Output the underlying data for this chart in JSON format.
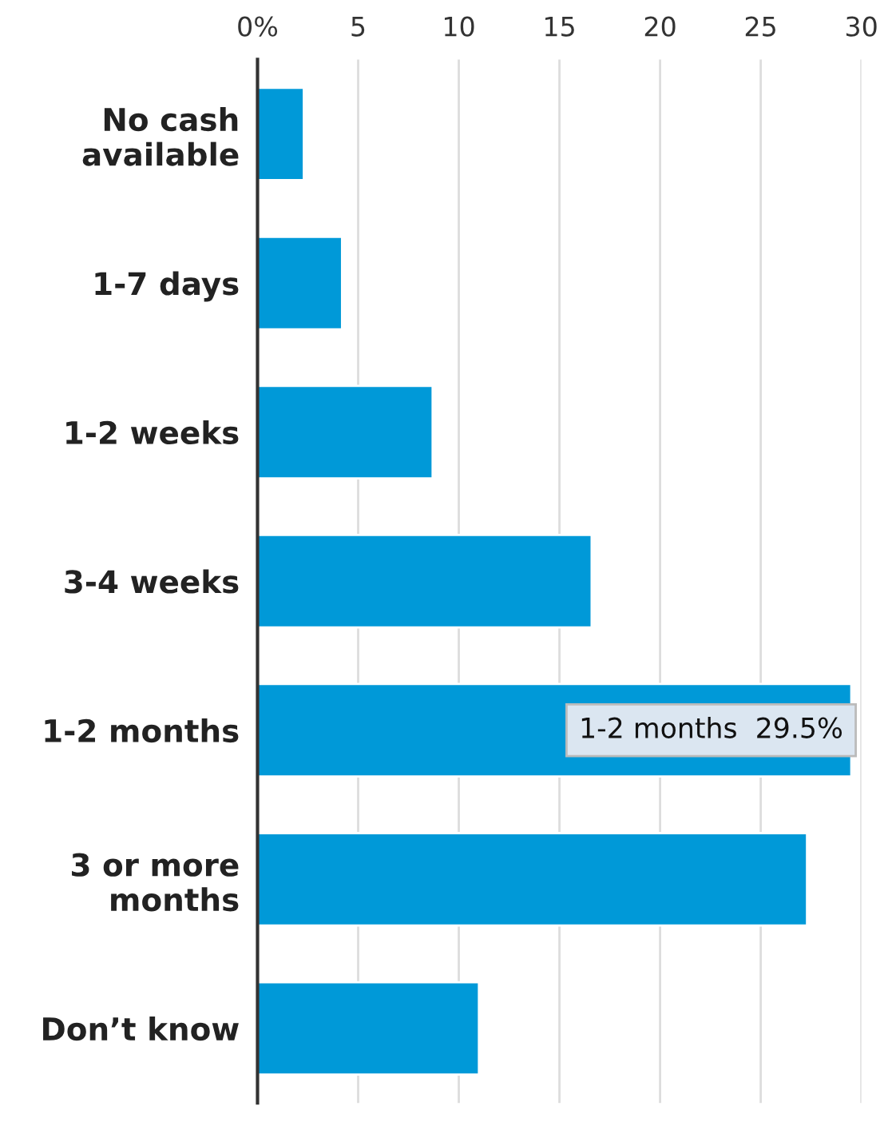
{
  "chart_data": {
    "type": "bar",
    "orientation": "horizontal",
    "categories": [
      "No cash\navailable",
      "1-7 days",
      "1-2 weeks",
      "3-4 weeks",
      "1-2 months",
      "3 or more\nmonths",
      "Don’t know"
    ],
    "values": [
      2.3,
      4.2,
      8.7,
      16.6,
      29.5,
      27.3,
      11.0
    ],
    "color": "#0099d8",
    "xlim": [
      0,
      30
    ],
    "xticks": [
      {
        "value": 0,
        "label": "0%"
      },
      5,
      10,
      15,
      20,
      25,
      30
    ],
    "grid": "x",
    "annotations": [
      {
        "text": "1-2 months  29.5%",
        "x": 29.5,
        "y": "1-2 months"
      }
    ]
  }
}
